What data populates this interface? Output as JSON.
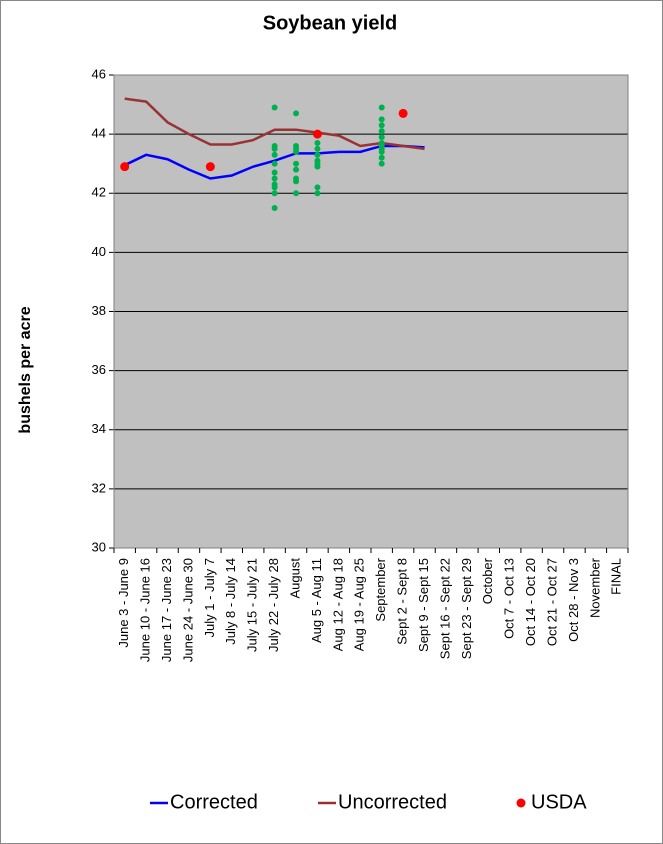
{
  "chart_data": {
    "type": "line",
    "title": "Soybean yield",
    "y_label": "bushels per acre",
    "categories": [
      "June 3 - June 9",
      "June 10 - June 16",
      "June 17 - June 23",
      "June 24 - June 30",
      "July 1 - July 7",
      "July 8 - July 14",
      "July 15 - July 21",
      "July 22 - July 28",
      "August",
      "Aug 5 - Aug 11",
      "Aug 12 - Aug 18",
      "Aug 19 - Aug 25",
      "September",
      "Sept 2 - Sept 8",
      "Sept 9 - Sept 15",
      "Sept 16 - Sept 22",
      "Sept 23 - Sept 29",
      "October",
      "Oct 7 - Oct 13",
      "Oct 14 - Oct 20",
      "Oct 21 - Oct 27",
      "Oct 28 - Nov 3",
      "November",
      "FINAL"
    ],
    "series": [
      {
        "name": "Corrected",
        "type": "line",
        "color": "#0000ff",
        "values": [
          42.95,
          43.3,
          43.15,
          42.8,
          42.5,
          42.6,
          42.9,
          43.1,
          43.35,
          43.35,
          43.4,
          43.4,
          43.6,
          43.6,
          43.55,
          null,
          null,
          null,
          null,
          null,
          null,
          null,
          null,
          null
        ]
      },
      {
        "name": "Uncorrected",
        "type": "line",
        "color": "#993333",
        "values": [
          45.2,
          45.1,
          44.4,
          44.0,
          43.65,
          43.65,
          43.8,
          44.15,
          44.15,
          44.05,
          43.95,
          43.6,
          43.7,
          43.6,
          43.5,
          null,
          null,
          null,
          null,
          null,
          null,
          null,
          null,
          null
        ]
      },
      {
        "name": "USDA",
        "type": "scatter",
        "color": "#ff0000",
        "values": [
          42.9,
          null,
          null,
          null,
          42.9,
          null,
          null,
          null,
          null,
          44.0,
          null,
          null,
          null,
          44.7,
          null,
          null,
          null,
          null,
          null,
          null,
          null,
          null,
          null,
          null
        ]
      },
      {
        "type": "scatter",
        "color": "#00b050",
        "values": [
          null,
          null,
          null,
          null,
          null,
          null,
          null,
          [
            44.9,
            43.6,
            43.5,
            43.3,
            43.0,
            42.7,
            42.5,
            42.3,
            42.2,
            42.0,
            41.5
          ],
          [
            44.7,
            43.6,
            43.5,
            43.4,
            43.0,
            42.8,
            42.5,
            42.4,
            42.0
          ],
          [
            43.7,
            43.5,
            43.3,
            43.1,
            43.0,
            42.9,
            42.2,
            42.0
          ],
          null,
          null,
          [
            44.9,
            44.5,
            44.3,
            44.1,
            43.9,
            43.7,
            43.6,
            43.5,
            43.4,
            43.2,
            43.0
          ],
          null,
          null,
          null,
          null,
          null,
          null,
          null,
          null,
          null,
          null,
          null
        ]
      }
    ],
    "ylim": [
      30,
      46
    ],
    "yticks": [
      30,
      32,
      34,
      36,
      38,
      40,
      42,
      44,
      46
    ],
    "grid": true,
    "legend": "bottom"
  }
}
